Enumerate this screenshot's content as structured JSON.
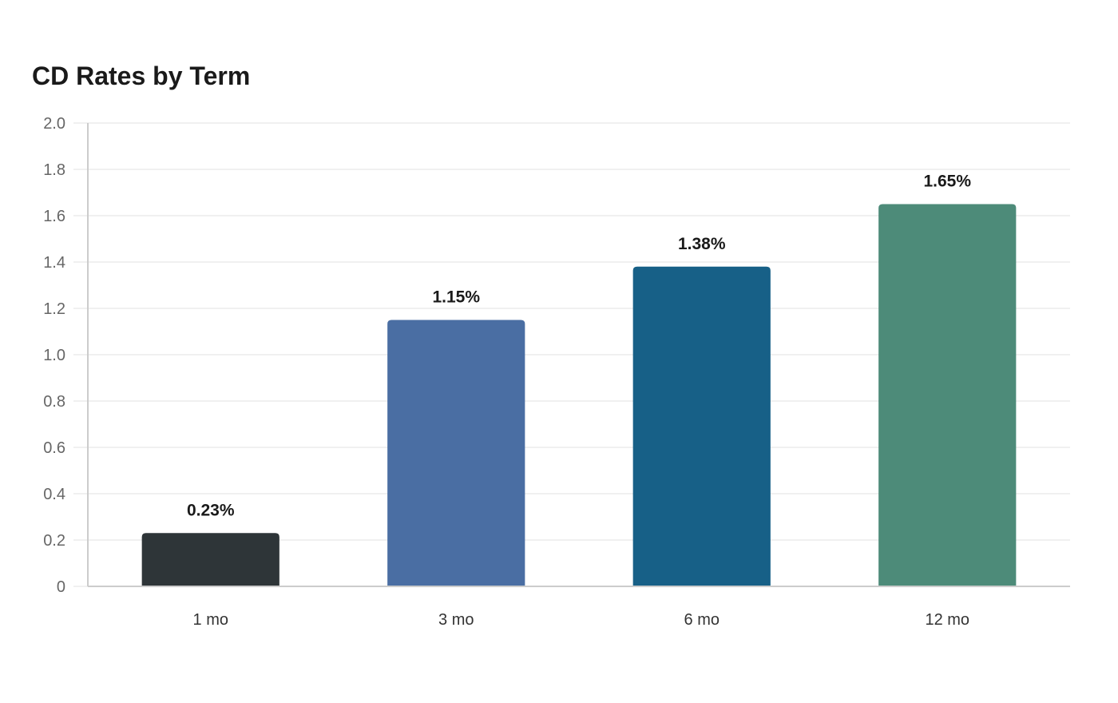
{
  "chart_data": {
    "type": "bar",
    "title": "CD Rates by Term",
    "xlabel": "",
    "ylabel": "",
    "categories": [
      "1 mo",
      "3 mo",
      "6 mo",
      "12 mo"
    ],
    "values": [
      0.23,
      1.15,
      1.38,
      1.65
    ],
    "data_labels": [
      "0.23%",
      "1.15%",
      "1.38%",
      "1.65%"
    ],
    "ylim": [
      0,
      2.0
    ],
    "yticks": [
      0,
      0.2,
      0.4,
      0.6,
      0.8,
      1.0,
      1.2,
      1.4,
      1.6,
      1.8,
      2.0
    ],
    "ytick_labels": [
      "0",
      "0.2",
      "0.4",
      "0.6",
      "0.8",
      "1.0",
      "1.2",
      "1.4",
      "1.6",
      "1.8",
      "2.0"
    ],
    "bar_colors": [
      "#2e3538",
      "#4a6ea3",
      "#176087",
      "#4d8b79"
    ],
    "grid": true,
    "legend": "none"
  }
}
